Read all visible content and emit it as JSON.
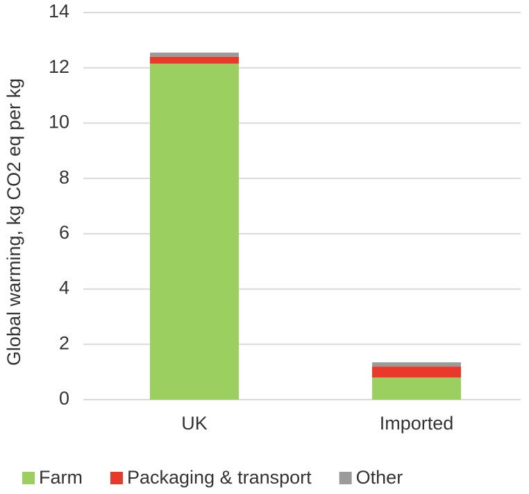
{
  "chart_data": {
    "type": "stacked_bar",
    "y_label": "Global warming, kg CO2 eq per kg",
    "categories": [
      "UK",
      "Imported"
    ],
    "series": [
      {
        "name": "Farm",
        "color": "#9bcf5f",
        "values": [
          12.15,
          0.8
        ]
      },
      {
        "name": "Packaging & transport",
        "color": "#e8392a",
        "values": [
          0.25,
          0.4
        ]
      },
      {
        "name": "Other",
        "color": "#9b9b9b",
        "values": [
          0.15,
          0.15
        ]
      }
    ],
    "ylim": [
      0,
      14
    ],
    "yticks": [
      0,
      2,
      4,
      6,
      8,
      10,
      12,
      14
    ],
    "grid": true,
    "legend": "bottom"
  }
}
